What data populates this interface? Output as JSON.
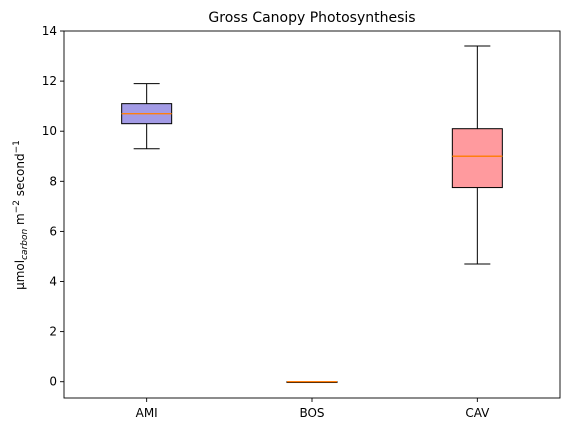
{
  "chart_data": {
    "type": "box",
    "title": "Gross Canopy Photosynthesis",
    "xlabel": "",
    "ylabel": {
      "base": "μmol",
      "subscript": "carbon",
      "middle": " m",
      "sup1": "−2",
      "end": " second",
      "sup2": "−1"
    },
    "ylim": [
      -0.65,
      14
    ],
    "yticks": [
      0,
      2,
      4,
      6,
      8,
      10,
      12,
      14
    ],
    "categories": [
      "AMI",
      "BOS",
      "CAV"
    ],
    "boxes": [
      {
        "category": "AMI",
        "whisker_low": 9.3,
        "q1": 10.3,
        "median": 10.7,
        "q3": 11.1,
        "whisker_high": 11.9,
        "color": "#a39be6"
      },
      {
        "category": "BOS",
        "whisker_low": 0.0,
        "q1": 0.0,
        "median": 0.0,
        "q3": 0.0,
        "whisker_high": 0.0,
        "color": "#f0a0a0"
      },
      {
        "category": "CAV",
        "whisker_low": 4.7,
        "q1": 7.75,
        "median": 9.0,
        "q3": 10.1,
        "whisker_high": 13.4,
        "color": "#ff9a9e"
      }
    ],
    "median_color": "#ff7f0e",
    "grid": false
  }
}
